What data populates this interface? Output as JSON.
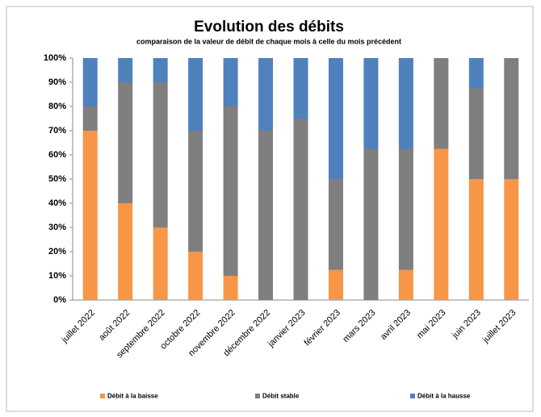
{
  "chart_data": {
    "type": "stacked_bar_100",
    "title": "Evolution des débits",
    "subtitle": "comparaison de la valeur de débit de chaque mois à celle du mois précédent",
    "categories": [
      "juillet 2022",
      "août 2022",
      "septembre 2022",
      "octobre 2022",
      "novembre 2022",
      "décembre 2022",
      "janvier 2023",
      "février 2023",
      "mars 2023",
      "avril 2023",
      "mai 2023",
      "juin 2023",
      "juillet 2023"
    ],
    "series": [
      {
        "name": "Débit à la baisse",
        "color": "#f79646",
        "values": [
          70,
          40,
          30,
          20,
          10,
          0,
          0,
          12.5,
          0,
          12.5,
          62.5,
          50,
          50
        ]
      },
      {
        "name": "Débit stable",
        "color": "#7f7f7f",
        "values": [
          10,
          50,
          60,
          50,
          70,
          70,
          75,
          37.5,
          62.5,
          50,
          37.5,
          37.5,
          50
        ]
      },
      {
        "name": "Débit à la hausse",
        "color": "#4f81bd",
        "values": [
          20,
          10,
          10,
          30,
          20,
          30,
          25,
          50,
          37.5,
          37.5,
          0,
          12.5,
          0
        ]
      }
    ],
    "ylim": [
      0,
      100
    ],
    "yticks": [
      {
        "value": 0,
        "label": "0%"
      },
      {
        "value": 10,
        "label": "10%"
      },
      {
        "value": 20,
        "label": "20%"
      },
      {
        "value": 30,
        "label": "30%"
      },
      {
        "value": 40,
        "label": "40%"
      },
      {
        "value": 50,
        "label": "50%"
      },
      {
        "value": 60,
        "label": "60%"
      },
      {
        "value": 70,
        "label": "70%"
      },
      {
        "value": 80,
        "label": "80%"
      },
      {
        "value": 90,
        "label": "90%"
      },
      {
        "value": 100,
        "label": "100%"
      }
    ],
    "grid": false,
    "legend": "bottom"
  }
}
